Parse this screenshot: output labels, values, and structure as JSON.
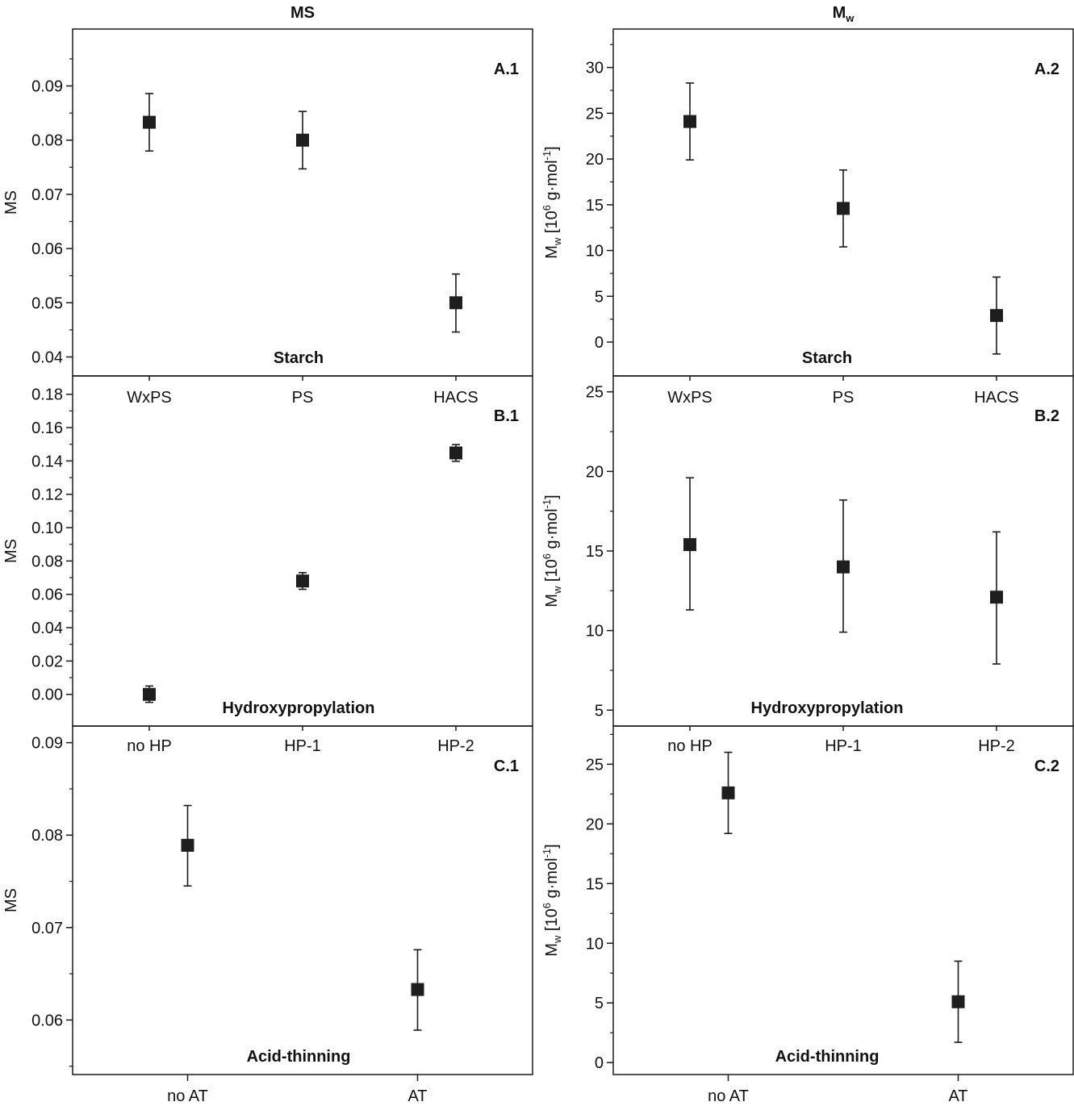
{
  "figure": {
    "column_titles": [
      {
        "text": "MS",
        "sub": ""
      },
      {
        "text": "M",
        "sub": "w"
      }
    ]
  },
  "chart_data": [
    {
      "id": "A.1",
      "type": "scatter",
      "panel_label": "A.1",
      "group_label": "Starch",
      "ylabel": {
        "main": "MS"
      },
      "ylim": [
        0.0365,
        0.1005
      ],
      "yticks": [
        0.04,
        0.05,
        0.06,
        0.07,
        0.08,
        0.09
      ],
      "ytick_decimals": 2,
      "yminor": [
        0.035,
        0.045,
        0.055,
        0.065,
        0.075,
        0.085,
        0.095
      ],
      "categories": [
        "WxPS",
        "PS",
        "HACS"
      ],
      "x": [
        1,
        2,
        3
      ],
      "xlim": [
        0.5,
        3.5
      ],
      "values": [
        0.0833,
        0.08,
        0.05
      ],
      "err_low": [
        0.078,
        0.0747,
        0.0446
      ],
      "err_high": [
        0.0886,
        0.0853,
        0.0553
      ]
    },
    {
      "id": "A.2",
      "type": "scatter",
      "panel_label": "A.2",
      "group_label": "Starch",
      "ylabel": {
        "main": "M",
        "sub": "w",
        "rest": " [10",
        "sup": "6",
        "tail": " g·mol",
        "sup2": "-1",
        "end": "]"
      },
      "ylim": [
        -3.7,
        34.2
      ],
      "yticks": [
        0,
        5,
        10,
        15,
        20,
        25,
        30
      ],
      "ytick_decimals": 0,
      "yminor": [
        2.5,
        7.5,
        12.5,
        17.5,
        22.5,
        27.5,
        32.5
      ],
      "categories": [
        "WxPS",
        "PS",
        "HACS"
      ],
      "x": [
        1,
        2,
        3
      ],
      "xlim": [
        0.5,
        3.5
      ],
      "values": [
        24.1,
        14.6,
        2.9
      ],
      "err_low": [
        19.9,
        10.4,
        -1.3
      ],
      "err_high": [
        28.3,
        18.8,
        7.1
      ]
    },
    {
      "id": "B.1",
      "type": "scatter",
      "panel_label": "B.1",
      "group_label": "Hydroxypropylation",
      "ylabel": {
        "main": "MS"
      },
      "ylim": [
        -0.019,
        0.191
      ],
      "yticks": [
        0.0,
        0.02,
        0.04,
        0.06,
        0.08,
        0.1,
        0.12,
        0.14,
        0.16,
        0.18
      ],
      "ytick_decimals": 2,
      "yminor": [
        0.01,
        0.03,
        0.05,
        0.07,
        0.09,
        0.11,
        0.13,
        0.15,
        0.17
      ],
      "categories": [
        "no HP",
        "HP-1",
        "HP-2"
      ],
      "x": [
        1,
        2,
        3
      ],
      "xlim": [
        0.5,
        3.5
      ],
      "values": [
        0.0,
        0.068,
        0.1448
      ],
      "err_low": [
        -0.0048,
        0.063,
        0.1398
      ],
      "err_high": [
        0.005,
        0.073,
        0.1498
      ]
    },
    {
      "id": "B.2",
      "type": "scatter",
      "panel_label": "B.2",
      "group_label": "Hydroxypropylation",
      "ylabel": {
        "main": "M",
        "sub": "w",
        "rest": " [10",
        "sup": "6",
        "tail": " g·mol",
        "sup2": "-1",
        "end": "]"
      },
      "ylim": [
        4.0,
        26.0
      ],
      "yticks": [
        5,
        10,
        15,
        20,
        25
      ],
      "ytick_decimals": 0,
      "yminor": [
        7.5,
        12.5,
        17.5,
        22.5
      ],
      "categories": [
        "no HP",
        "HP-1",
        "HP-2"
      ],
      "x": [
        1,
        2,
        3
      ],
      "xlim": [
        0.5,
        3.5
      ],
      "values": [
        15.4,
        14.0,
        12.1
      ],
      "err_low": [
        11.3,
        9.9,
        7.9
      ],
      "err_high": [
        19.6,
        18.2,
        16.2
      ]
    },
    {
      "id": "C.1",
      "type": "scatter",
      "panel_label": "C.1",
      "group_label": "Acid-thinning",
      "ylabel": {
        "main": "MS"
      },
      "ylim": [
        0.0541,
        0.0918
      ],
      "yticks": [
        0.06,
        0.07,
        0.08,
        0.09
      ],
      "ytick_decimals": 2,
      "yminor": [
        0.055,
        0.065,
        0.075,
        0.085
      ],
      "categories": [
        "no AT",
        "AT"
      ],
      "x": [
        1,
        2
      ],
      "xlim": [
        0.5,
        2.5
      ],
      "values": [
        0.0789,
        0.0633
      ],
      "err_low": [
        0.0745,
        0.0589
      ],
      "err_high": [
        0.0832,
        0.0676
      ]
    },
    {
      "id": "C.2",
      "type": "scatter",
      "panel_label": "C.2",
      "group_label": "Acid-thinning",
      "ylabel": {
        "main": "M",
        "sub": "w",
        "rest": " [10",
        "sup": "6",
        "tail": " g·mol",
        "sup2": "-1",
        "end": "]"
      },
      "ylim": [
        -1.0,
        28.2
      ],
      "yticks": [
        0,
        5,
        10,
        15,
        20,
        25
      ],
      "ytick_decimals": 0,
      "yminor": [
        2.5,
        7.5,
        12.5,
        17.5,
        22.5,
        27.5
      ],
      "categories": [
        "no AT",
        "AT"
      ],
      "x": [
        1,
        2
      ],
      "xlim": [
        0.5,
        2.5
      ],
      "values": [
        22.6,
        5.1
      ],
      "err_low": [
        19.2,
        1.7
      ],
      "err_high": [
        26.0,
        8.5
      ]
    }
  ]
}
